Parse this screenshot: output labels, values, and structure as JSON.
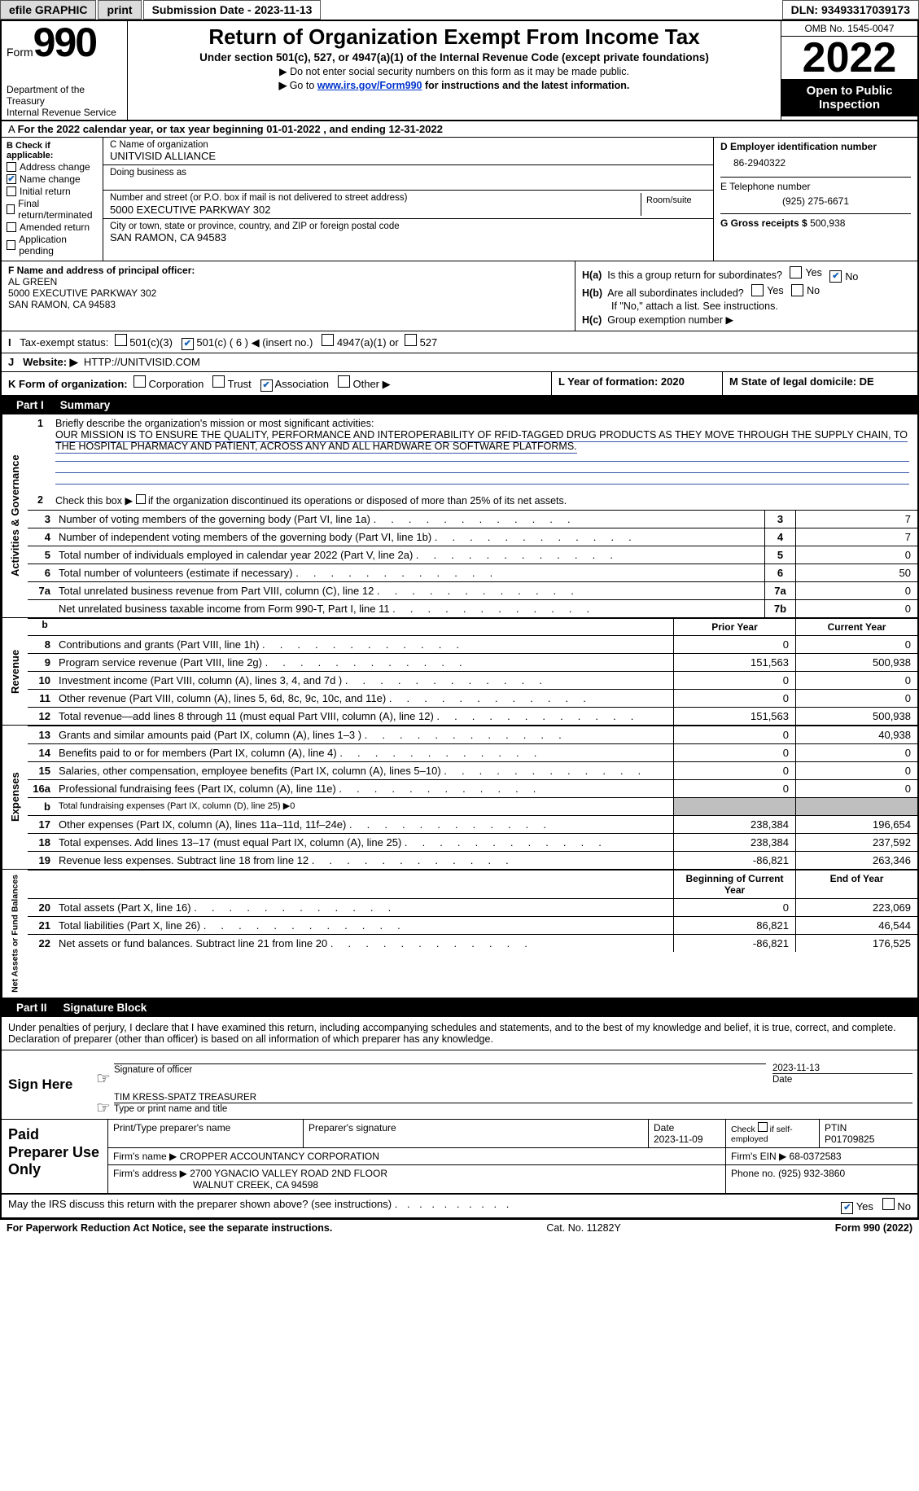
{
  "topbar": {
    "efile": "efile GRAPHIC",
    "print": "print",
    "submission_date_label": "Submission Date - 2023-11-13",
    "dln": "DLN: 93493317039173"
  },
  "header": {
    "form_word": "Form",
    "form_num": "990",
    "title": "Return of Organization Exempt From Income Tax",
    "subtitle": "Under section 501(c), 527, or 4947(a)(1) of the Internal Revenue Code (except private foundations)",
    "line1": "Do not enter social security numbers on this form as it may be made public.",
    "line2_pre": "Go to ",
    "line2_link": "www.irs.gov/Form990",
    "line2_post": " for instructions and the latest information.",
    "dept": "Department of the Treasury",
    "irs": "Internal Revenue Service",
    "omb": "OMB No. 1545-0047",
    "year": "2022",
    "open": "Open to Public Inspection"
  },
  "rowA": "For the 2022 calendar year, or tax year beginning 01-01-2022    , and ending 12-31-2022",
  "boxB": {
    "label": "B Check if applicable:",
    "items": [
      "Address change",
      "Name change",
      "Initial return",
      "Final return/terminated",
      "Amended return",
      "Application pending"
    ]
  },
  "boxC": {
    "name_label": "C Name of organization",
    "name": "UNITVISID ALLIANCE",
    "dba_label": "Doing business as",
    "addr_label": "Number and street (or P.O. box if mail is not delivered to street address)",
    "addr": "5000 EXECUTIVE PARKWAY 302",
    "room_label": "Room/suite",
    "city_label": "City or town, state or province, country, and ZIP or foreign postal code",
    "city": "SAN RAMON, CA  94583"
  },
  "boxD": {
    "label": "D Employer identification number",
    "val": "86-2940322",
    "phone_label": "E Telephone number",
    "phone": "(925) 275-6671",
    "gross_label": "G Gross receipts $",
    "gross": "500,938"
  },
  "boxF": {
    "label": "F  Name and address of principal officer:",
    "name": "AL GREEN",
    "addr1": "5000 EXECUTIVE PARKWAY 302",
    "addr2": "SAN RAMON, CA  94583"
  },
  "boxH": {
    "a_label": "Is this a group return for subordinates?",
    "b_label": "Are all subordinates included?",
    "note": "If \"No,\" attach a list. See instructions.",
    "c_label": "Group exemption number ▶"
  },
  "boxI": {
    "label": "Tax-exempt status:",
    "o501c3": "501(c)(3)",
    "o501c": "501(c) ( 6 ) ◀ (insert no.)",
    "o4947": "4947(a)(1) or",
    "o527": "527"
  },
  "boxJ": {
    "label": "Website: ▶",
    "val": "HTTP://UNITVISID.COM"
  },
  "boxK": {
    "label": "K Form of organization:",
    "corp": "Corporation",
    "trust": "Trust",
    "assoc": "Association",
    "other": "Other ▶"
  },
  "boxL": {
    "label": "L Year of formation: 2020"
  },
  "boxM": {
    "label": "M State of legal domicile: DE"
  },
  "part1": {
    "title": "Part I",
    "heading": "Summary"
  },
  "mission": {
    "prompt": "Briefly describe the organization's mission or most significant activities:",
    "text": "OUR MISSION IS TO ENSURE THE QUALITY, PERFORMANCE AND INTEROPERABILITY OF RFID-TAGGED DRUG PRODUCTS AS THEY MOVE THROUGH THE SUPPLY CHAIN, TO THE HOSPITAL PHARMACY AND PATIENT, ACROSS ANY AND ALL HARDWARE OR SOFTWARE PLATFORMS."
  },
  "line2": "Check this box ▶       if the organization discontinued its operations or disposed of more than 25% of its net assets.",
  "gov_lines": [
    {
      "n": "3",
      "t": "Number of voting members of the governing body (Part VI, line 1a)",
      "b": "3",
      "v": "7"
    },
    {
      "n": "4",
      "t": "Number of independent voting members of the governing body (Part VI, line 1b)",
      "b": "4",
      "v": "7"
    },
    {
      "n": "5",
      "t": "Total number of individuals employed in calendar year 2022 (Part V, line 2a)",
      "b": "5",
      "v": "0"
    },
    {
      "n": "6",
      "t": "Total number of volunteers (estimate if necessary)",
      "b": "6",
      "v": "50"
    },
    {
      "n": "7a",
      "t": "Total unrelated business revenue from Part VIII, column (C), line 12",
      "b": "7a",
      "v": "0"
    },
    {
      "n": "",
      "t": "Net unrelated business taxable income from Form 990-T, Part I, line 11",
      "b": "7b",
      "v": "0"
    }
  ],
  "col_hdrs": {
    "prior": "Prior Year",
    "current": "Current Year",
    "boy": "Beginning of Current Year",
    "eoy": "End of Year"
  },
  "revenue": [
    {
      "n": "8",
      "t": "Contributions and grants (Part VIII, line 1h)",
      "p": "0",
      "c": "0"
    },
    {
      "n": "9",
      "t": "Program service revenue (Part VIII, line 2g)",
      "p": "151,563",
      "c": "500,938"
    },
    {
      "n": "10",
      "t": "Investment income (Part VIII, column (A), lines 3, 4, and 7d )",
      "p": "0",
      "c": "0"
    },
    {
      "n": "11",
      "t": "Other revenue (Part VIII, column (A), lines 5, 6d, 8c, 9c, 10c, and 11e)",
      "p": "0",
      "c": "0"
    },
    {
      "n": "12",
      "t": "Total revenue—add lines 8 through 11 (must equal Part VIII, column (A), line 12)",
      "p": "151,563",
      "c": "500,938"
    }
  ],
  "expenses": [
    {
      "n": "13",
      "t": "Grants and similar amounts paid (Part IX, column (A), lines 1–3 )",
      "p": "0",
      "c": "40,938"
    },
    {
      "n": "14",
      "t": "Benefits paid to or for members (Part IX, column (A), line 4)",
      "p": "0",
      "c": "0"
    },
    {
      "n": "15",
      "t": "Salaries, other compensation, employee benefits (Part IX, column (A), lines 5–10)",
      "p": "0",
      "c": "0"
    },
    {
      "n": "16a",
      "t": "Professional fundraising fees (Part IX, column (A), line 11e)",
      "p": "0",
      "c": "0"
    },
    {
      "n": "b",
      "t": "Total fundraising expenses (Part IX, column (D), line 25) ▶0",
      "p": "",
      "c": "",
      "shade": true,
      "small": true
    },
    {
      "n": "17",
      "t": "Other expenses (Part IX, column (A), lines 11a–11d, 11f–24e)",
      "p": "238,384",
      "c": "196,654"
    },
    {
      "n": "18",
      "t": "Total expenses. Add lines 13–17 (must equal Part IX, column (A), line 25)",
      "p": "238,384",
      "c": "237,592"
    },
    {
      "n": "19",
      "t": "Revenue less expenses. Subtract line 18 from line 12",
      "p": "-86,821",
      "c": "263,346"
    }
  ],
  "netassets": [
    {
      "n": "20",
      "t": "Total assets (Part X, line 16)",
      "p": "0",
      "c": "223,069"
    },
    {
      "n": "21",
      "t": "Total liabilities (Part X, line 26)",
      "p": "86,821",
      "c": "46,544"
    },
    {
      "n": "22",
      "t": "Net assets or fund balances. Subtract line 21 from line 20",
      "p": "-86,821",
      "c": "176,525"
    }
  ],
  "vtabs": {
    "gov": "Activities & Governance",
    "rev": "Revenue",
    "exp": "Expenses",
    "net": "Net Assets or Fund Balances"
  },
  "part2": {
    "title": "Part II",
    "heading": "Signature Block"
  },
  "sig": {
    "declare": "Under penalties of perjury, I declare that I have examined this return, including accompanying schedules and statements, and to the best of my knowledge and belief, it is true, correct, and complete. Declaration of preparer (other than officer) is based on all information of which preparer has any knowledge.",
    "sign_here": "Sign Here",
    "sig_of_officer": "Signature of officer",
    "date": "Date",
    "date_val": "2023-11-13",
    "officer": "TIM KRESS-SPATZ  TREASURER",
    "type_name": "Type or print name and title"
  },
  "prep": {
    "label": "Paid Preparer Use Only",
    "print_name_lbl": "Print/Type preparer's name",
    "sig_lbl": "Preparer's signature",
    "date_lbl": "Date",
    "date": "2023-11-09",
    "check_lbl": "Check          if self-employed",
    "ptin_lbl": "PTIN",
    "ptin": "P01709825",
    "firm_name_lbl": "Firm's name      ▶",
    "firm_name": "CROPPER ACCOUNTANCY CORPORATION",
    "firm_ein_lbl": "Firm's EIN ▶",
    "firm_ein": "68-0372583",
    "firm_addr_lbl": "Firm's address ▶",
    "firm_addr1": "2700 YGNACIO VALLEY ROAD 2ND FLOOR",
    "firm_addr2": "WALNUT CREEK, CA  94598",
    "phone_lbl": "Phone no.",
    "phone": "(925) 932-3860"
  },
  "discuss": "May the IRS discuss this return with the preparer shown above? (see instructions)",
  "footer": {
    "left": "For Paperwork Reduction Act Notice, see the separate instructions.",
    "mid": "Cat. No. 11282Y",
    "right": "Form 990 (2022)"
  },
  "yes": "Yes",
  "no": "No"
}
